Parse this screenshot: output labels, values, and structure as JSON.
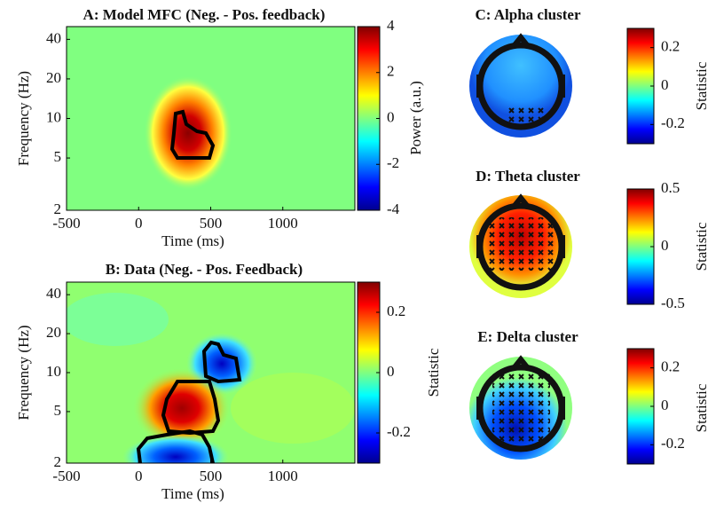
{
  "chart_data": [
    {
      "type": "heatmap",
      "title": "A: Model MFC (Neg. - Pos. feedback)",
      "x_label": "Time (ms)",
      "y_label": "Frequency (Hz)",
      "xlim": [
        -500,
        1500
      ],
      "xticks": [
        -500,
        0,
        500,
        1000
      ],
      "ylim": [
        2,
        50
      ],
      "yticks": [
        2,
        5,
        10,
        20,
        40
      ],
      "y_log": true,
      "clim": [
        -4,
        4
      ],
      "cticks": [
        -4,
        -2,
        0,
        2,
        4
      ],
      "colorbar_label": "Power (a.u.)",
      "colormap": "jet"
    },
    {
      "type": "heatmap",
      "title": "B: Data (Neg. - Pos. Feedback)",
      "x_label": "Time (ms)",
      "y_label": "Frequency (Hz)",
      "xlim": [
        -500,
        1500
      ],
      "xticks": [
        -500,
        0,
        500,
        1000
      ],
      "ylim": [
        2,
        50
      ],
      "yticks": [
        2,
        5,
        10,
        20,
        40
      ],
      "y_log": true,
      "clim": [
        -0.3,
        0.3
      ],
      "cticks": [
        -0.2,
        0,
        0.2
      ],
      "colorbar_label": "Statistic",
      "colormap": "jet"
    },
    {
      "type": "topoplot",
      "title": "C: Alpha cluster",
      "clim": [
        -0.3,
        0.3
      ],
      "cticks": [
        -0.2,
        0,
        0.2
      ],
      "colorbar_label": "Statistic",
      "colormap": "jet"
    },
    {
      "type": "topoplot",
      "title": "D: Theta cluster",
      "clim": [
        -0.5,
        0.5
      ],
      "cticks": [
        -0.5,
        0,
        0.5
      ],
      "colorbar_label": "Statistic",
      "colormap": "jet"
    },
    {
      "type": "topoplot",
      "title": "E: Delta cluster",
      "clim": [
        -0.3,
        0.3
      ],
      "cticks": [
        -0.2,
        0,
        0.2
      ],
      "colorbar_label": "Statistic",
      "colormap": "jet"
    }
  ]
}
